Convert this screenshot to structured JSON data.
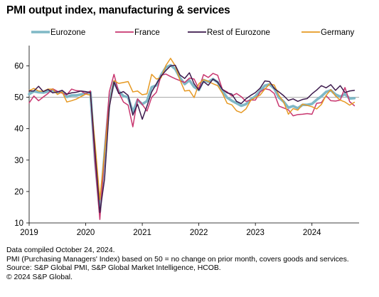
{
  "page": {
    "title": "PMI output index, manufacturing & services",
    "footnotes": [
      "Data compiled October 24, 2024.",
      "PMI (Purchasing Managers' Index) based on 50 = no change on prior month, covers goods and services.",
      "Source: S&P Global PMI, S&P Global Market Intelligence, HCOB.",
      "© 2024 S&P Global."
    ]
  },
  "chart_data": {
    "type": "line",
    "title": "PMI output index, manufacturing & services",
    "xlabel": "",
    "ylabel": "",
    "x_start": "2019-01",
    "x_end": "2024-10",
    "xlim": [
      "2019-01",
      "2024-11"
    ],
    "x_ticks": [
      "2019",
      "2020",
      "2021",
      "2022",
      "2023",
      "2024"
    ],
    "ylim": [
      10,
      66
    ],
    "y_ticks": [
      10,
      20,
      30,
      40,
      50,
      60
    ],
    "reference_line": 50,
    "grid": false,
    "legend_position": "top",
    "series": [
      {
        "name": "Eurozone",
        "color": "#7fb8c6",
        "values": [
          51.0,
          51.9,
          51.6,
          51.5,
          51.8,
          52.2,
          51.5,
          51.9,
          50.1,
          50.6,
          50.6,
          50.9,
          51.3,
          51.6,
          29.7,
          13.6,
          31.9,
          48.5,
          54.9,
          51.9,
          50.4,
          50.0,
          45.3,
          49.1,
          47.8,
          48.8,
          53.2,
          53.8,
          57.1,
          59.5,
          60.2,
          59.0,
          56.2,
          54.2,
          55.4,
          53.3,
          52.3,
          55.5,
          54.9,
          55.8,
          54.8,
          52.0,
          49.9,
          48.9,
          48.1,
          47.3,
          47.8,
          49.3,
          50.3,
          52.0,
          53.7,
          54.1,
          52.8,
          49.9,
          48.6,
          46.7,
          47.2,
          46.5,
          47.6,
          47.6,
          47.9,
          49.2,
          50.3,
          51.7,
          52.2,
          50.9,
          50.2,
          51.0,
          49.6,
          49.7
        ]
      },
      {
        "name": "France",
        "color": "#c8366f",
        "values": [
          48.2,
          50.4,
          48.9,
          50.1,
          51.2,
          52.7,
          51.9,
          51.3,
          50.8,
          52.6,
          52.1,
          52.0,
          51.1,
          52.0,
          28.9,
          11.1,
          32.1,
          51.7,
          57.3,
          51.6,
          48.5,
          47.5,
          40.6,
          49.5,
          47.7,
          45.6,
          50.0,
          51.6,
          57.0,
          57.4,
          56.6,
          55.9,
          55.3,
          54.7,
          56.1,
          55.8,
          52.7,
          57.2,
          56.3,
          57.6,
          57.0,
          52.5,
          51.7,
          50.4,
          51.2,
          50.2,
          48.7,
          49.1,
          49.1,
          51.7,
          52.7,
          52.4,
          51.2,
          47.2,
          46.6,
          46.0,
          44.1,
          44.5,
          44.6,
          44.8,
          44.6,
          48.1,
          48.3,
          50.5,
          48.9,
          48.8,
          49.1,
          53.1,
          48.6,
          47.3
        ]
      },
      {
        "name": "Rest of Eurozone",
        "color": "#3d1a4d",
        "values": [
          52.0,
          52.0,
          53.5,
          51.8,
          52.5,
          51.4,
          51.7,
          52.2,
          51.0,
          51.4,
          51.6,
          52.0,
          51.8,
          51.5,
          32.0,
          13.3,
          24.0,
          46.8,
          54.9,
          51.2,
          51.8,
          50.6,
          44.3,
          47.8,
          43.0,
          47.2,
          51.7,
          54.3,
          56.7,
          58.5,
          60.0,
          60.2,
          57.1,
          56.0,
          57.8,
          54.3,
          52.3,
          55.0,
          53.8,
          55.8,
          54.8,
          52.5,
          51.4,
          51.0,
          48.7,
          48.0,
          49.5,
          50.6,
          51.5,
          52.9,
          55.2,
          55.0,
          52.8,
          51.7,
          50.5,
          49.0,
          49.5,
          48.7,
          49.3,
          49.6,
          51.1,
          52.3,
          53.7,
          53.0,
          54.0,
          52.2,
          53.7,
          51.5,
          52.0,
          52.2
        ]
      },
      {
        "name": "Germany",
        "color": "#e69923",
        "values": [
          52.1,
          52.8,
          52.0,
          51.9,
          52.6,
          52.6,
          50.9,
          51.7,
          48.5,
          48.9,
          49.4,
          50.2,
          51.0,
          50.7,
          35.0,
          17.4,
          32.3,
          47.0,
          55.3,
          54.4,
          54.7,
          55.0,
          51.7,
          52.0,
          50.8,
          51.1,
          57.3,
          55.8,
          56.2,
          60.1,
          62.4,
          60.0,
          55.5,
          52.0,
          52.2,
          49.9,
          54.3,
          55.6,
          55.1,
          54.3,
          53.7,
          51.3,
          48.1,
          47.6,
          45.7,
          45.1,
          46.3,
          49.0,
          49.9,
          50.7,
          52.6,
          54.2,
          53.9,
          50.6,
          48.5,
          44.6,
          46.4,
          45.9,
          47.8,
          47.4,
          47.0,
          46.3,
          47.7,
          50.6,
          52.4,
          50.4,
          49.1,
          48.5,
          47.5,
          48.4
        ]
      }
    ]
  }
}
